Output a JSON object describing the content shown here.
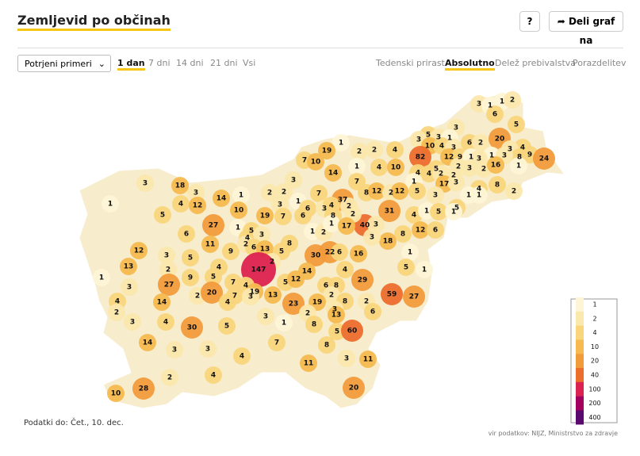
{
  "header": {
    "title": "Zemljevid po občinah",
    "help": "?",
    "share": "Deli graf na"
  },
  "controls": {
    "select": "Potrjeni primeri",
    "periods": [
      "1 dan",
      "7 dni",
      "14 dni",
      "21 dni",
      "Vsi"
    ],
    "active_period": 0,
    "modes": [
      "Tedenski prirast",
      "Absolutno",
      "Delež prebivalstva",
      "Porazdelitev"
    ],
    "active_mode": 1
  },
  "map": {
    "values": [
      3,
      1,
      1,
      2,
      6,
      5,
      3,
      5,
      3,
      1,
      3,
      10,
      4,
      3,
      6,
      2,
      20,
      4,
      3,
      9,
      8,
      24,
      1,
      3,
      82,
      12,
      9,
      1,
      3,
      2,
      16,
      1,
      5,
      4,
      4,
      2,
      2,
      2,
      3,
      17,
      3,
      8,
      2,
      4,
      1,
      1,
      5,
      1,
      1,
      19,
      2,
      2,
      4,
      7,
      10,
      4,
      10,
      14,
      1,
      3,
      7,
      7,
      37,
      8,
      12,
      2,
      12,
      5,
      3,
      2,
      2,
      1,
      3,
      6,
      3,
      4,
      2,
      31,
      1,
      14,
      3,
      18,
      3,
      1,
      4,
      12,
      5,
      10,
      19,
      7,
      6,
      8,
      40,
      2,
      4,
      1,
      5,
      1,
      27,
      1,
      5,
      6,
      11,
      4,
      3,
      1,
      2,
      1,
      17,
      3,
      8,
      12,
      6,
      18,
      9,
      2,
      6,
      13,
      5,
      8,
      30,
      22,
      6,
      16,
      3,
      12,
      3,
      5,
      1,
      2,
      147,
      5,
      1,
      13,
      2,
      4,
      9,
      5,
      14,
      4,
      12,
      6,
      29,
      5,
      1,
      27,
      7,
      4,
      19,
      2,
      20,
      7,
      4,
      3,
      13,
      8,
      2,
      19,
      8,
      2,
      59,
      27,
      3,
      4,
      14,
      23,
      2,
      3,
      4,
      3,
      30,
      5,
      3,
      2,
      13,
      6,
      1,
      8,
      5,
      60,
      14,
      3,
      3,
      7,
      8,
      4,
      3,
      11,
      11,
      4,
      2,
      10,
      28,
      20
    ],
    "legend": {
      "ticks": [
        1,
        2,
        4,
        10,
        20,
        40,
        100,
        200,
        400
      ],
      "colors": [
        "#fdf5d6",
        "#fbe8ad",
        "#f9d67c",
        "#f6ba50",
        "#f29b3b",
        "#ec6e2d",
        "#dc2250",
        "#a4005e",
        "#5a0a6e"
      ]
    }
  },
  "footer": {
    "date": "Podatki do: Čet., 10. dec.",
    "source": "vir podatkov: NIJZ, Ministrstvo za zdravje"
  }
}
